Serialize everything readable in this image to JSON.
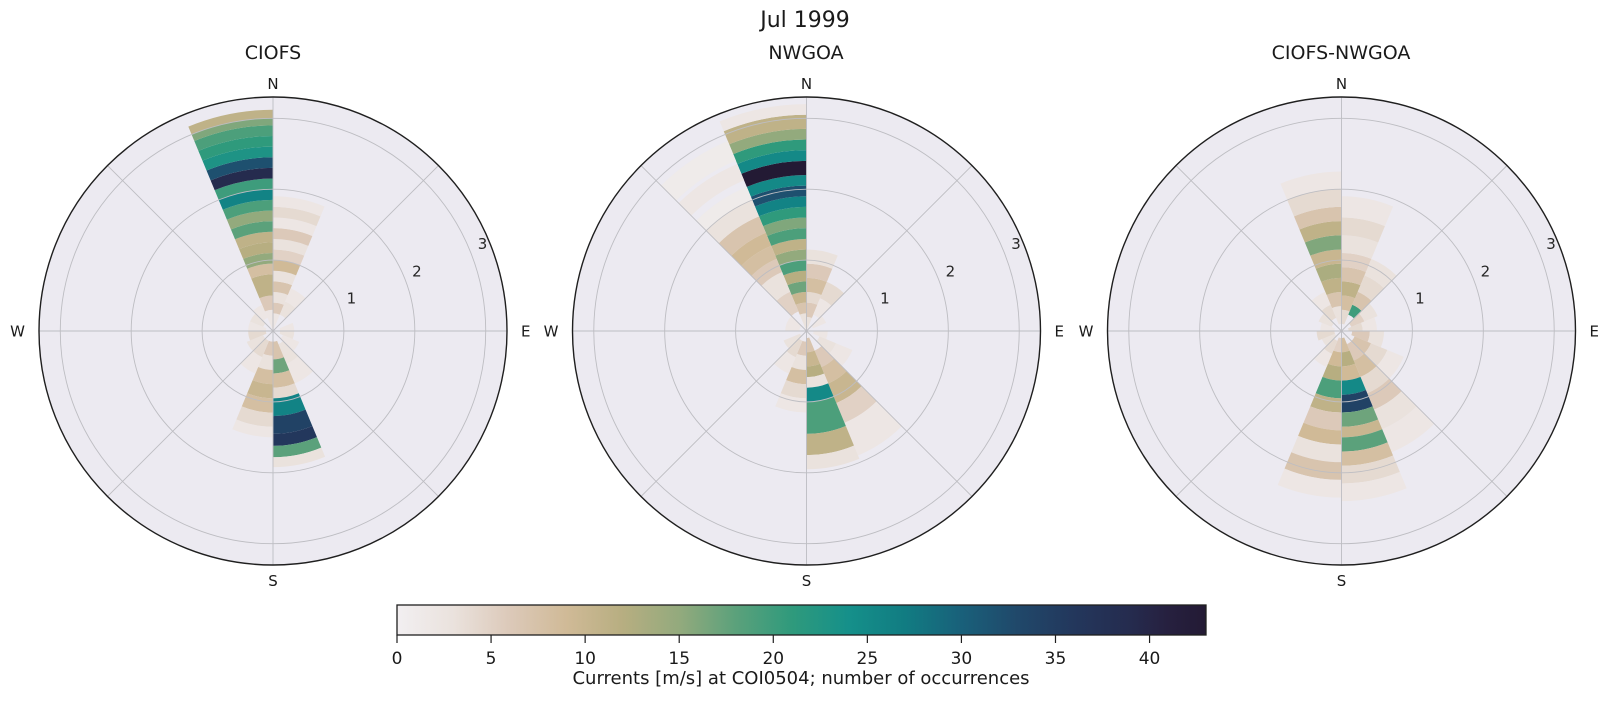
{
  "figure": {
    "suptitle": "Jul 1999",
    "background": "#ffffff"
  },
  "polar": {
    "cardinal_labels": [
      "N",
      "E",
      "S",
      "W"
    ],
    "radial_ticks": [
      1,
      2,
      3
    ],
    "rmax": 3.3,
    "rlabel_angle_deg": 22.5,
    "face_color": "#eceaf1",
    "grid_color": "#bdbdc2",
    "spine_color": "#1f1f1f",
    "tick_label_color": "#262626"
  },
  "colormap": {
    "vmin": 0,
    "vmax": 43,
    "stops": [
      {
        "v": 0,
        "c": "#f2eff1"
      },
      {
        "v": 3,
        "c": "#eae2dd"
      },
      {
        "v": 6,
        "c": "#dcc9b9"
      },
      {
        "v": 9,
        "c": "#d0ba97"
      },
      {
        "v": 12,
        "c": "#b7ae81"
      },
      {
        "v": 15,
        "c": "#93aa7d"
      },
      {
        "v": 18,
        "c": "#5ba17b"
      },
      {
        "v": 21,
        "c": "#2f9a7c"
      },
      {
        "v": 24,
        "c": "#15908a"
      },
      {
        "v": 27,
        "c": "#117c82"
      },
      {
        "v": 30,
        "c": "#19607a"
      },
      {
        "v": 33,
        "c": "#20486a"
      },
      {
        "v": 36,
        "c": "#23375c"
      },
      {
        "v": 39,
        "c": "#252b4e"
      },
      {
        "v": 41,
        "c": "#26203f"
      },
      {
        "v": 43,
        "c": "#231a34"
      }
    ]
  },
  "colorbar": {
    "label": "Currents [m/s] at COI0504; number of occurrences",
    "ticks": [
      0,
      5,
      10,
      15,
      20,
      25,
      30,
      35,
      40
    ]
  },
  "chart_data": [
    {
      "type": "polar_rose",
      "title": "CIOFS",
      "direction_bin_width_deg": 22.5,
      "radial_axis": "current speed [m/s]",
      "color_axis": "number of occurrences",
      "rticks": [
        1,
        2,
        3
      ],
      "rmax": 3.3,
      "cells": [
        [
          348.75,
          0.0,
          0.3,
          2
        ],
        [
          348.75,
          0.3,
          0.5,
          6
        ],
        [
          348.75,
          0.5,
          0.8,
          11
        ],
        [
          348.75,
          0.8,
          0.95,
          8
        ],
        [
          348.75,
          0.95,
          1.1,
          15
        ],
        [
          348.75,
          1.1,
          1.25,
          12
        ],
        [
          348.75,
          1.25,
          1.4,
          11
        ],
        [
          348.75,
          1.4,
          1.55,
          18
        ],
        [
          348.75,
          1.55,
          1.7,
          15
        ],
        [
          348.75,
          1.7,
          1.85,
          19
        ],
        [
          348.75,
          1.85,
          2.0,
          26
        ],
        [
          348.75,
          2.0,
          2.15,
          20
        ],
        [
          348.75,
          2.15,
          2.3,
          39
        ],
        [
          348.75,
          2.3,
          2.45,
          32
        ],
        [
          348.75,
          2.45,
          2.6,
          23
        ],
        [
          348.75,
          2.6,
          2.75,
          21
        ],
        [
          348.75,
          2.75,
          2.9,
          19
        ],
        [
          348.75,
          2.9,
          3.0,
          16
        ],
        [
          348.75,
          3.0,
          3.12,
          11
        ],
        [
          11.25,
          0.0,
          0.25,
          2
        ],
        [
          11.25,
          0.25,
          0.4,
          6
        ],
        [
          11.25,
          0.4,
          0.55,
          3
        ],
        [
          11.25,
          0.55,
          0.7,
          7
        ],
        [
          11.25,
          0.7,
          0.85,
          3
        ],
        [
          11.25,
          0.85,
          1.0,
          9
        ],
        [
          11.25,
          1.0,
          1.15,
          5
        ],
        [
          11.25,
          1.15,
          1.3,
          3
        ],
        [
          11.25,
          1.3,
          1.45,
          6
        ],
        [
          11.25,
          1.45,
          1.6,
          2
        ],
        [
          11.25,
          1.6,
          1.75,
          4
        ],
        [
          11.25,
          1.75,
          1.9,
          2
        ],
        [
          33.75,
          0.25,
          0.45,
          3
        ],
        [
          33.75,
          0.45,
          0.65,
          2
        ],
        [
          78.75,
          0.1,
          0.3,
          2
        ],
        [
          101.25,
          0.1,
          0.3,
          3
        ],
        [
          123.75,
          0.15,
          0.4,
          2
        ],
        [
          146.25,
          0.2,
          0.5,
          3
        ],
        [
          146.25,
          0.5,
          0.8,
          2
        ],
        [
          168.75,
          0.15,
          0.4,
          7
        ],
        [
          168.75,
          0.4,
          0.6,
          17
        ],
        [
          168.75,
          0.6,
          0.8,
          8
        ],
        [
          168.75,
          0.8,
          0.95,
          4
        ],
        [
          168.75,
          0.95,
          1.2,
          26
        ],
        [
          168.75,
          1.2,
          1.45,
          34
        ],
        [
          168.75,
          1.45,
          1.62,
          36
        ],
        [
          168.75,
          1.62,
          1.78,
          18
        ],
        [
          168.75,
          1.78,
          1.92,
          3
        ],
        [
          191.25,
          0.15,
          0.35,
          6
        ],
        [
          191.25,
          0.35,
          0.55,
          3
        ],
        [
          191.25,
          0.55,
          0.75,
          8
        ],
        [
          191.25,
          0.75,
          0.95,
          10
        ],
        [
          191.25,
          0.95,
          1.15,
          8
        ],
        [
          191.25,
          1.15,
          1.35,
          4
        ],
        [
          191.25,
          1.35,
          1.5,
          2
        ],
        [
          213.75,
          0.15,
          0.4,
          4
        ],
        [
          213.75,
          0.4,
          0.65,
          2
        ],
        [
          236.25,
          0.15,
          0.4,
          3
        ],
        [
          258.75,
          0.1,
          0.35,
          4
        ],
        [
          281.25,
          0.1,
          0.35,
          2
        ],
        [
          303.75,
          0.15,
          0.35,
          3
        ],
        [
          326.25,
          0.2,
          0.4,
          2
        ]
      ]
    },
    {
      "type": "polar_rose",
      "title": "NWGOA",
      "direction_bin_width_deg": 22.5,
      "radial_axis": "current speed [m/s]",
      "color_axis": "number of occurrences",
      "rticks": [
        1,
        2,
        3
      ],
      "rmax": 3.3,
      "cells": [
        [
          348.75,
          0.0,
          0.25,
          3
        ],
        [
          348.75,
          0.25,
          0.4,
          7
        ],
        [
          348.75,
          0.4,
          0.55,
          10
        ],
        [
          348.75,
          0.55,
          0.7,
          17
        ],
        [
          348.75,
          0.7,
          0.85,
          12
        ],
        [
          348.75,
          0.85,
          1.0,
          19
        ],
        [
          348.75,
          1.0,
          1.15,
          15
        ],
        [
          348.75,
          1.15,
          1.3,
          11
        ],
        [
          348.75,
          1.3,
          1.45,
          19
        ],
        [
          348.75,
          1.45,
          1.6,
          16
        ],
        [
          348.75,
          1.6,
          1.75,
          21
        ],
        [
          348.75,
          1.75,
          1.9,
          26
        ],
        [
          348.75,
          1.9,
          2.05,
          32
        ],
        [
          348.75,
          2.05,
          2.2,
          25
        ],
        [
          348.75,
          2.2,
          2.4,
          43
        ],
        [
          348.75,
          2.4,
          2.55,
          25
        ],
        [
          348.75,
          2.55,
          2.7,
          21
        ],
        [
          348.75,
          2.7,
          2.85,
          15
        ],
        [
          348.75,
          2.85,
          3.05,
          11
        ],
        [
          348.75,
          3.05,
          3.2,
          2
        ],
        [
          326.25,
          0.3,
          0.6,
          5
        ],
        [
          326.25,
          0.6,
          0.9,
          3
        ],
        [
          326.25,
          0.9,
          1.1,
          6
        ],
        [
          326.25,
          1.1,
          1.3,
          8
        ],
        [
          326.25,
          1.3,
          1.5,
          9
        ],
        [
          326.25,
          1.5,
          1.75,
          7
        ],
        [
          326.25,
          1.75,
          2.0,
          3
        ],
        [
          326.25,
          2.0,
          2.2,
          1
        ],
        [
          326.25,
          2.3,
          2.55,
          2
        ],
        [
          326.25,
          2.6,
          2.9,
          1
        ],
        [
          11.25,
          0.0,
          0.2,
          3
        ],
        [
          11.25,
          0.2,
          0.4,
          6
        ],
        [
          11.25,
          0.4,
          0.55,
          4
        ],
        [
          11.25,
          0.55,
          0.75,
          8
        ],
        [
          11.25,
          0.75,
          0.95,
          6
        ],
        [
          11.25,
          0.95,
          1.15,
          3
        ],
        [
          33.75,
          0.25,
          0.5,
          2
        ],
        [
          33.75,
          0.5,
          0.75,
          4
        ],
        [
          56.25,
          0.1,
          0.3,
          2
        ],
        [
          101.25,
          0.1,
          0.3,
          2
        ],
        [
          123.75,
          0.2,
          0.45,
          3
        ],
        [
          123.75,
          0.45,
          0.7,
          2
        ],
        [
          146.25,
          0.3,
          0.55,
          6
        ],
        [
          146.25,
          0.55,
          0.8,
          8
        ],
        [
          146.25,
          0.8,
          1.1,
          10
        ],
        [
          146.25,
          1.1,
          1.4,
          5
        ],
        [
          146.25,
          1.4,
          1.9,
          2
        ],
        [
          168.75,
          0.1,
          0.3,
          7
        ],
        [
          168.75,
          0.3,
          0.5,
          10
        ],
        [
          168.75,
          0.5,
          0.65,
          12
        ],
        [
          168.75,
          0.65,
          0.8,
          3
        ],
        [
          168.75,
          0.8,
          1.0,
          25
        ],
        [
          168.75,
          1.0,
          1.45,
          19
        ],
        [
          168.75,
          1.45,
          1.75,
          11
        ],
        [
          168.75,
          1.75,
          1.95,
          3
        ],
        [
          191.25,
          0.15,
          0.35,
          6
        ],
        [
          191.25,
          0.35,
          0.55,
          3
        ],
        [
          191.25,
          0.55,
          0.75,
          8
        ],
        [
          191.25,
          0.75,
          0.95,
          4
        ],
        [
          191.25,
          0.95,
          1.15,
          2
        ],
        [
          213.75,
          0.15,
          0.4,
          4
        ],
        [
          213.75,
          0.4,
          0.65,
          2
        ],
        [
          236.25,
          0.1,
          0.35,
          3
        ],
        [
          281.25,
          0.1,
          0.3,
          2
        ],
        [
          303.75,
          0.1,
          0.3,
          2
        ]
      ]
    },
    {
      "type": "polar_rose",
      "title": "CIOFS-NWGOA",
      "direction_bin_width_deg": 22.5,
      "radial_axis": "current speed [m/s]",
      "color_axis": "number of occurrences",
      "rticks": [
        1,
        2,
        3
      ],
      "rmax": 3.3,
      "cells": [
        [
          348.75,
          0.1,
          0.35,
          3
        ],
        [
          348.75,
          0.35,
          0.55,
          7
        ],
        [
          348.75,
          0.55,
          0.75,
          11
        ],
        [
          348.75,
          0.75,
          0.95,
          13
        ],
        [
          348.75,
          0.95,
          1.15,
          10
        ],
        [
          348.75,
          1.15,
          1.35,
          16
        ],
        [
          348.75,
          1.35,
          1.55,
          11
        ],
        [
          348.75,
          1.55,
          1.75,
          7
        ],
        [
          348.75,
          1.75,
          2.0,
          4
        ],
        [
          348.75,
          2.0,
          2.25,
          2
        ],
        [
          11.25,
          0.1,
          0.3,
          4
        ],
        [
          11.25,
          0.3,
          0.5,
          8
        ],
        [
          11.25,
          0.5,
          0.7,
          11
        ],
        [
          11.25,
          0.7,
          0.9,
          7
        ],
        [
          11.25,
          0.9,
          1.1,
          5
        ],
        [
          11.25,
          1.1,
          1.35,
          3
        ],
        [
          11.25,
          1.35,
          1.6,
          4
        ],
        [
          11.25,
          1.6,
          1.9,
          2
        ],
        [
          33.75,
          0.25,
          0.4,
          20
        ],
        [
          33.75,
          0.4,
          0.6,
          7
        ],
        [
          33.75,
          0.6,
          0.85,
          4
        ],
        [
          33.75,
          0.85,
          1.1,
          3
        ],
        [
          56.25,
          0.15,
          0.35,
          5
        ],
        [
          56.25,
          0.35,
          0.55,
          3
        ],
        [
          78.75,
          0.1,
          0.3,
          4
        ],
        [
          78.75,
          0.3,
          0.5,
          2
        ],
        [
          101.25,
          0.15,
          0.4,
          6
        ],
        [
          101.25,
          0.4,
          0.6,
          3
        ],
        [
          123.75,
          0.2,
          0.45,
          7
        ],
        [
          123.75,
          0.45,
          0.7,
          4
        ],
        [
          123.75,
          0.7,
          0.95,
          2
        ],
        [
          146.25,
          0.2,
          0.45,
          6
        ],
        [
          146.25,
          0.45,
          0.7,
          8
        ],
        [
          146.25,
          0.7,
          0.95,
          4
        ],
        [
          146.25,
          0.95,
          1.2,
          6
        ],
        [
          146.25,
          1.2,
          1.5,
          3
        ],
        [
          146.25,
          1.5,
          1.85,
          2
        ],
        [
          168.75,
          0.1,
          0.3,
          8
        ],
        [
          168.75,
          0.3,
          0.5,
          12
        ],
        [
          168.75,
          0.5,
          0.7,
          9
        ],
        [
          168.75,
          0.7,
          0.9,
          25
        ],
        [
          168.75,
          0.9,
          1.15,
          34
        ],
        [
          168.75,
          1.15,
          1.35,
          17
        ],
        [
          168.75,
          1.35,
          1.5,
          10
        ],
        [
          168.75,
          1.5,
          1.7,
          18
        ],
        [
          168.75,
          1.7,
          1.9,
          8
        ],
        [
          168.75,
          1.9,
          2.15,
          4
        ],
        [
          168.75,
          2.15,
          2.4,
          2
        ],
        [
          191.25,
          0.1,
          0.3,
          5
        ],
        [
          191.25,
          0.3,
          0.5,
          9
        ],
        [
          191.25,
          0.5,
          0.7,
          12
        ],
        [
          191.25,
          0.7,
          0.95,
          19
        ],
        [
          191.25,
          0.95,
          1.15,
          11
        ],
        [
          191.25,
          1.15,
          1.4,
          6
        ],
        [
          191.25,
          1.4,
          1.6,
          9
        ],
        [
          191.25,
          1.6,
          1.85,
          3
        ],
        [
          191.25,
          1.85,
          2.1,
          7
        ],
        [
          191.25,
          2.1,
          2.35,
          2
        ],
        [
          213.75,
          0.15,
          0.35,
          4
        ],
        [
          213.75,
          0.35,
          0.55,
          2
        ],
        [
          236.25,
          0.1,
          0.3,
          3
        ],
        [
          258.75,
          0.1,
          0.35,
          4
        ],
        [
          281.25,
          0.1,
          0.3,
          2
        ],
        [
          303.75,
          0.15,
          0.35,
          3
        ],
        [
          326.25,
          0.2,
          0.4,
          4
        ],
        [
          326.25,
          0.4,
          0.6,
          2
        ]
      ]
    }
  ]
}
